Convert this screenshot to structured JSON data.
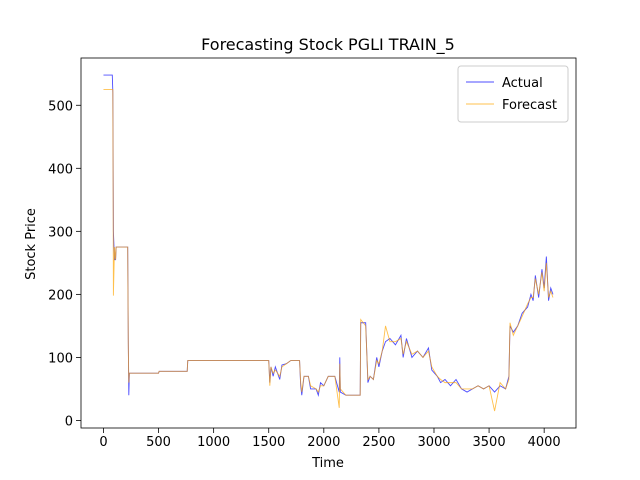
{
  "chart_data": {
    "type": "line",
    "title": "Forecasting Stock PGLI TRAIN_5",
    "x_label": "Time",
    "y_label": "Stock Price",
    "x": [
      0,
      80,
      85,
      90,
      100,
      110,
      115,
      220,
      225,
      230,
      235,
      500,
      505,
      760,
      765,
      1500,
      1510,
      1520,
      1540,
      1560,
      1600,
      1620,
      1660,
      1700,
      1780,
      1790,
      1800,
      1820,
      1860,
      1880,
      1930,
      1950,
      1970,
      2000,
      2040,
      2100,
      2140,
      2145,
      2150,
      2200,
      2300,
      2330,
      2335,
      2380,
      2400,
      2420,
      2450,
      2480,
      2500,
      2530,
      2560,
      2600,
      2650,
      2700,
      2720,
      2750,
      2800,
      2850,
      2900,
      2950,
      2980,
      3030,
      3060,
      3100,
      3150,
      3200,
      3250,
      3300,
      3350,
      3400,
      3450,
      3500,
      3550,
      3600,
      3650,
      3680,
      3690,
      3720,
      3760,
      3800,
      3850,
      3880,
      3900,
      3920,
      3950,
      3980,
      4000,
      4020,
      4040,
      4060,
      4080
    ],
    "series": [
      {
        "name": "Actual",
        "color": "#0000ff",
        "values": [
          548,
          548,
          520,
          300,
          255,
          255,
          275,
          275,
          130,
          40,
          75,
          75,
          78,
          78,
          95,
          95,
          60,
          85,
          70,
          85,
          65,
          88,
          90,
          95,
          95,
          55,
          40,
          70,
          70,
          50,
          50,
          40,
          60,
          55,
          70,
          70,
          45,
          100,
          45,
          40,
          40,
          40,
          155,
          155,
          60,
          70,
          65,
          100,
          85,
          110,
          125,
          130,
          120,
          135,
          100,
          130,
          100,
          110,
          100,
          115,
          80,
          70,
          60,
          65,
          55,
          65,
          50,
          45,
          50,
          55,
          50,
          55,
          45,
          55,
          50,
          70,
          150,
          140,
          150,
          170,
          180,
          200,
          190,
          230,
          195,
          240,
          210,
          260,
          190,
          210,
          200
        ]
      },
      {
        "name": "Forecast",
        "color": "#ffa500",
        "values": [
          525,
          525,
          525,
          198,
          275,
          255,
          275,
          275,
          120,
          60,
          75,
          75,
          78,
          78,
          95,
          95,
          55,
          85,
          75,
          80,
          70,
          85,
          90,
          95,
          95,
          60,
          45,
          70,
          70,
          55,
          50,
          45,
          55,
          55,
          70,
          70,
          20,
          90,
          50,
          40,
          40,
          40,
          160,
          150,
          65,
          70,
          65,
          95,
          90,
          110,
          150,
          125,
          125,
          130,
          105,
          125,
          105,
          110,
          100,
          110,
          85,
          70,
          65,
          60,
          60,
          60,
          50,
          50,
          50,
          55,
          50,
          55,
          15,
          60,
          50,
          65,
          155,
          135,
          150,
          165,
          185,
          195,
          195,
          225,
          200,
          235,
          205,
          250,
          195,
          205,
          195
        ]
      }
    ],
    "xlim": [
      -204,
      4289
    ],
    "ylim": [
      -12,
      575
    ],
    "xticks": [
      0,
      500,
      1000,
      1500,
      2000,
      2500,
      3000,
      3500,
      4000
    ],
    "yticks": [
      0,
      100,
      200,
      300,
      400,
      500
    ],
    "grid": false,
    "legend": "upper right"
  }
}
